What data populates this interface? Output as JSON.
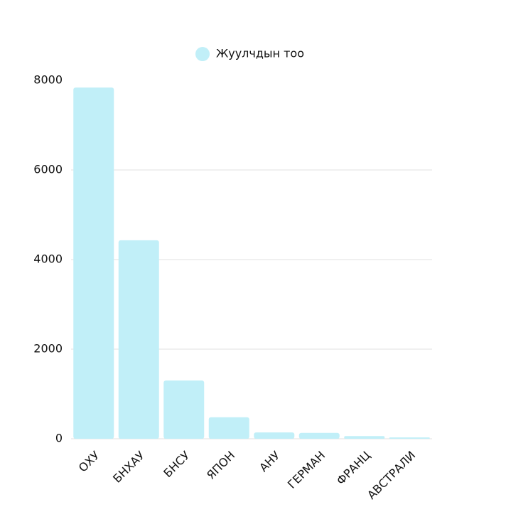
{
  "chart_data": {
    "type": "bar",
    "categories": [
      "ОХУ",
      "БНХАУ",
      "БНСУ",
      "ЯПОН",
      "АНУ",
      "ГЕРМАН",
      "ФРАНЦ",
      "АВСТРАЛИ"
    ],
    "series": [
      {
        "name": "Жуулчдын тоо",
        "color": "#c1eff8",
        "values": [
          7840,
          4430,
          1300,
          480,
          140,
          130,
          60,
          30
        ]
      }
    ],
    "ylim": [
      0,
      8000
    ],
    "yticks": [
      0,
      2000,
      4000,
      6000,
      8000
    ],
    "grid": true,
    "legend": "top"
  }
}
